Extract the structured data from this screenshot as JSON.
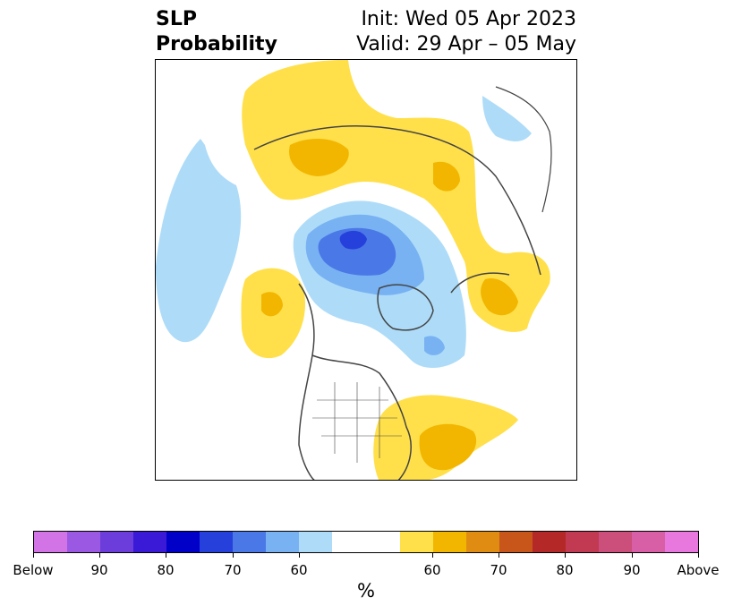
{
  "title": {
    "left_line1": "SLP",
    "left_line2": "Probability",
    "right_line1": "Init: Wed 05 Apr 2023",
    "right_line2": "Valid: 29 Apr – 05 May"
  },
  "colorbar": {
    "units": "%",
    "segments": [
      "#d274e6",
      "#9b59e3",
      "#6c3ddb",
      "#3a1ad6",
      "#0000c8",
      "#2640dc",
      "#4a78e6",
      "#78b2f2",
      "#aedcf8",
      "#ffffff",
      "#ffe04a",
      "#f2b600",
      "#e08c12",
      "#c8561a",
      "#b42828",
      "#c23a52",
      "#cc4e7a",
      "#d85ea6",
      "#e878de"
    ],
    "labels": [
      "Below",
      "90",
      "80",
      "70",
      "60",
      "60",
      "70",
      "80",
      "90",
      "Above"
    ]
  },
  "legend_colors": {
    "light_blue": "#aedcf8",
    "mid_blue": "#78b2f2",
    "blue": "#4a78e6",
    "dark_blue": "#2640dc",
    "yellow": "#ffe04a",
    "orange": "#f2b600",
    "coastline": "#444444"
  }
}
